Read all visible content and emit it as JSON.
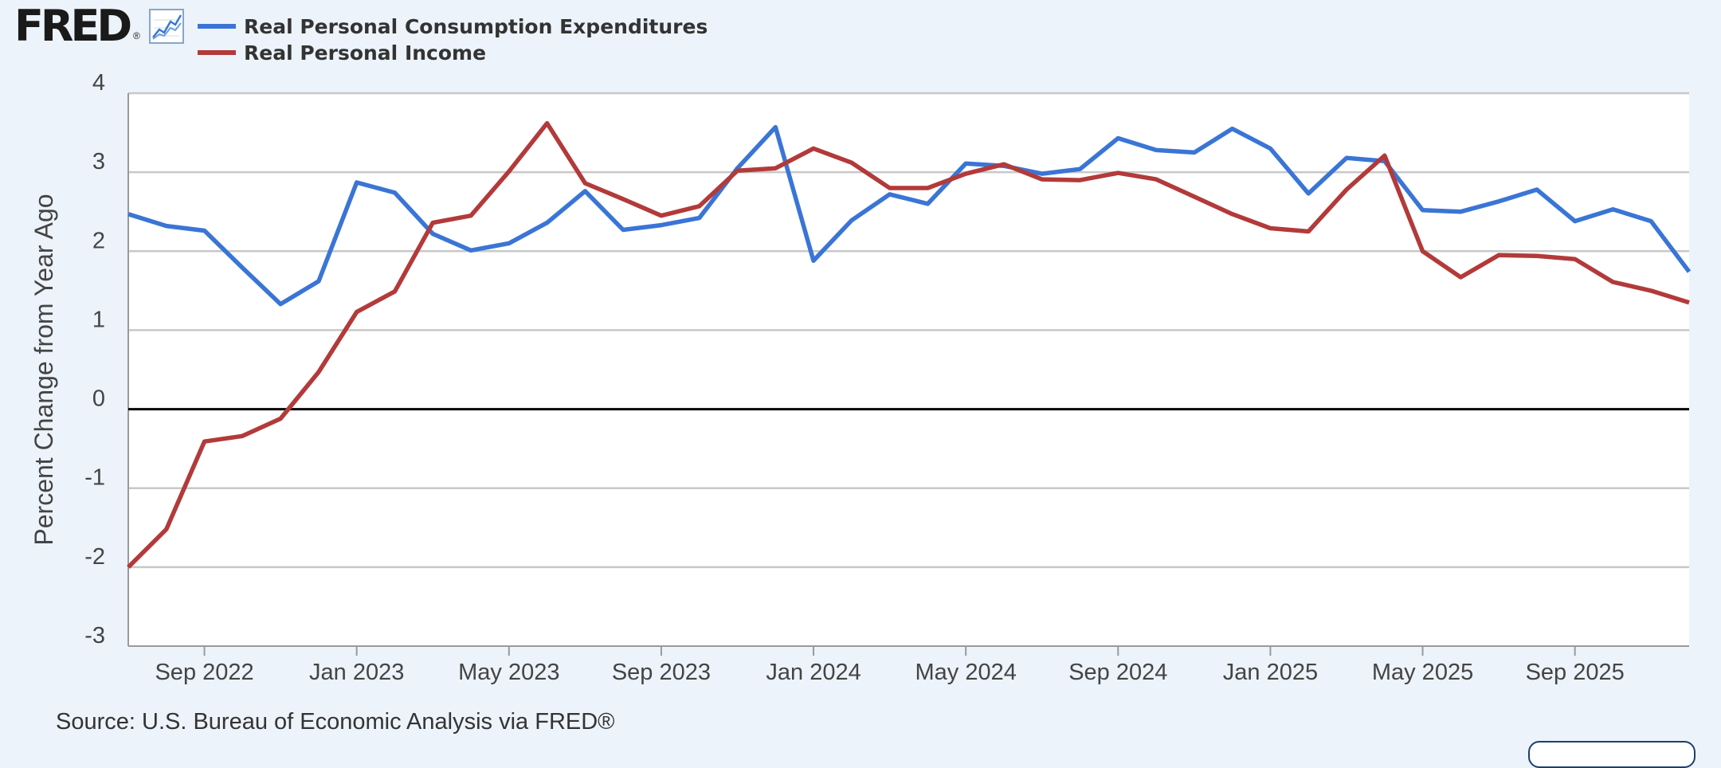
{
  "logo": {
    "text": "FRED",
    "reg": "®"
  },
  "source": "Source: U.S. Bureau of Economic Analysis via FRED®",
  "colors": {
    "background": "#ecf3fb",
    "grid": "#c8c8c8",
    "zero_line": "#000000"
  },
  "chart_data": {
    "type": "line",
    "ylabel": "Percent Change from Year Ago",
    "xlabel": "",
    "ylim": [
      -3,
      4
    ],
    "yticks": [
      -3,
      -2,
      -1,
      0,
      1,
      2,
      3,
      4
    ],
    "xlim": [
      "2022-07",
      "2025-12"
    ],
    "xticks": [
      {
        "date": "2022-09",
        "label": "Sep 2022"
      },
      {
        "date": "2023-01",
        "label": "Jan 2023"
      },
      {
        "date": "2023-05",
        "label": "May 2023"
      },
      {
        "date": "2023-09",
        "label": "Sep 2023"
      },
      {
        "date": "2024-01",
        "label": "Jan 2024"
      },
      {
        "date": "2024-05",
        "label": "May 2024"
      },
      {
        "date": "2024-09",
        "label": "Sep 2024"
      },
      {
        "date": "2025-01",
        "label": "Jan 2025"
      },
      {
        "date": "2025-05",
        "label": "May 2025"
      },
      {
        "date": "2025-09",
        "label": "Sep 2025"
      }
    ],
    "grid": true,
    "legend": "top-left",
    "x": [
      "2022-07",
      "2022-08",
      "2022-09",
      "2022-10",
      "2022-11",
      "2022-12",
      "2023-01",
      "2023-02",
      "2023-03",
      "2023-04",
      "2023-05",
      "2023-06",
      "2023-07",
      "2023-08",
      "2023-09",
      "2023-10",
      "2023-11",
      "2023-12",
      "2024-01",
      "2024-02",
      "2024-03",
      "2024-04",
      "2024-05",
      "2024-06",
      "2024-07",
      "2024-08",
      "2024-09",
      "2024-10",
      "2024-11",
      "2024-12",
      "2025-01",
      "2025-02",
      "2025-03",
      "2025-04",
      "2025-05",
      "2025-06",
      "2025-07",
      "2025-08",
      "2025-09",
      "2025-10",
      "2025-11",
      "2025-12"
    ],
    "series": [
      {
        "name": "Real Personal Consumption Expenditures",
        "color": "#3a75d6",
        "values": [
          2.47,
          2.32,
          2.26,
          1.79,
          1.33,
          1.62,
          2.87,
          2.74,
          2.22,
          2.01,
          2.1,
          2.36,
          2.76,
          2.27,
          2.33,
          2.42,
          3.05,
          3.57,
          1.88,
          2.39,
          2.72,
          2.6,
          3.11,
          3.08,
          2.98,
          3.04,
          3.43,
          3.28,
          3.25,
          3.55,
          3.3,
          2.73,
          3.18,
          3.14,
          2.52,
          2.5,
          2.63,
          2.78,
          2.38,
          2.53,
          2.38,
          1.74
        ]
      },
      {
        "name": "Real Personal Income",
        "color": "#b33a3a",
        "values": [
          -2.0,
          -1.52,
          -0.41,
          -0.34,
          -0.12,
          0.47,
          1.23,
          1.49,
          2.36,
          2.45,
          3.01,
          3.62,
          2.86,
          2.66,
          2.45,
          2.57,
          3.02,
          3.05,
          3.3,
          3.12,
          2.8,
          2.8,
          2.98,
          3.1,
          2.91,
          2.9,
          2.99,
          2.91,
          2.69,
          2.47,
          2.29,
          2.25,
          2.78,
          3.21,
          2.0,
          1.67,
          1.95,
          1.94,
          1.9,
          1.61,
          1.5,
          1.35
        ]
      }
    ]
  }
}
